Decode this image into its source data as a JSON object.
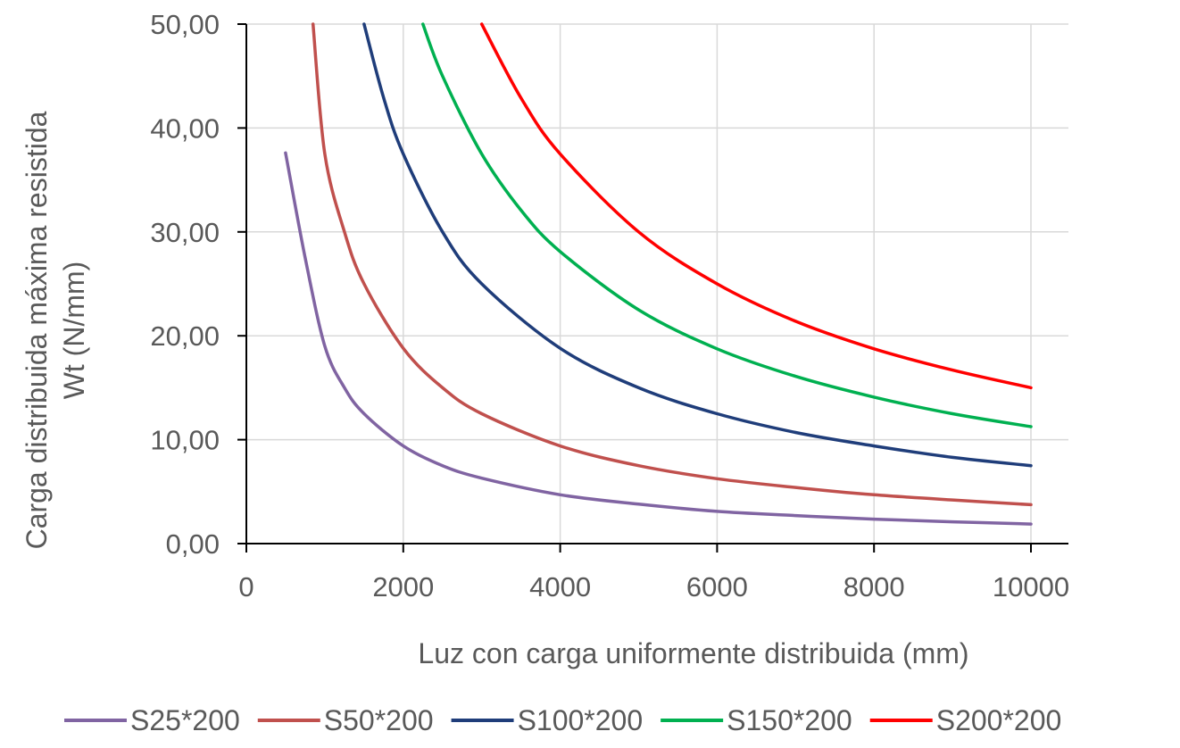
{
  "chart_data": {
    "type": "line",
    "title": "",
    "xlabel": "Luz con carga uniformente distribuida (mm)",
    "ylabel_lines": [
      "Carga distribuida máxima resistida",
      "Wt   (N/mm)"
    ],
    "xlim": [
      0,
      10000
    ],
    "ylim": [
      0,
      50
    ],
    "x_ticks": [
      "0",
      "2000",
      "4000",
      "6000",
      "8000",
      "10000"
    ],
    "y_ticks": [
      "0,00",
      "10,00",
      "20,00",
      "30,00",
      "40,00",
      "50,00"
    ],
    "grid": true,
    "legend_position": "bottom",
    "series": [
      {
        "name": "S25*200",
        "color": "#8064a2",
        "x": [
          500,
          750,
          1000,
          1250,
          1500,
          2000,
          2500,
          3000,
          4000,
          5000,
          6000,
          7000,
          8000,
          9000,
          10000
        ],
        "y": [
          37.6,
          27.5,
          19.0,
          15.0,
          12.5,
          9.4,
          7.5,
          6.3,
          4.7,
          3.8,
          3.1,
          2.7,
          2.35,
          2.1,
          1.88
        ]
      },
      {
        "name": "S50*200",
        "color": "#c0504d",
        "x": [
          850,
          1000,
          1250,
          1500,
          2000,
          2500,
          3000,
          4000,
          5000,
          6000,
          7000,
          8000,
          9000,
          10000
        ],
        "y": [
          50.0,
          37.5,
          30.0,
          25.0,
          18.8,
          15.0,
          12.5,
          9.4,
          7.5,
          6.25,
          5.4,
          4.7,
          4.2,
          3.75
        ]
      },
      {
        "name": "S100*200",
        "color": "#1f3d7a",
        "x": [
          1500,
          1750,
          2000,
          2500,
          3000,
          4000,
          5000,
          6000,
          7000,
          8000,
          9000,
          10000
        ],
        "y": [
          50.0,
          42.9,
          37.5,
          30.0,
          25.0,
          18.8,
          15.0,
          12.5,
          10.7,
          9.4,
          8.3,
          7.5
        ]
      },
      {
        "name": "S150*200",
        "color": "#00b050",
        "x": [
          2250,
          2500,
          3000,
          3500,
          4000,
          5000,
          6000,
          7000,
          8000,
          9000,
          10000
        ],
        "y": [
          50.0,
          45.0,
          37.5,
          32.1,
          28.1,
          22.5,
          18.75,
          16.1,
          14.1,
          12.5,
          11.25
        ]
      },
      {
        "name": "S200*200",
        "color": "#ff0000",
        "x": [
          3000,
          3500,
          4000,
          5000,
          6000,
          7000,
          8000,
          9000,
          10000
        ],
        "y": [
          50.0,
          42.9,
          37.5,
          30.0,
          25.0,
          21.4,
          18.75,
          16.7,
          15.0
        ]
      }
    ]
  }
}
